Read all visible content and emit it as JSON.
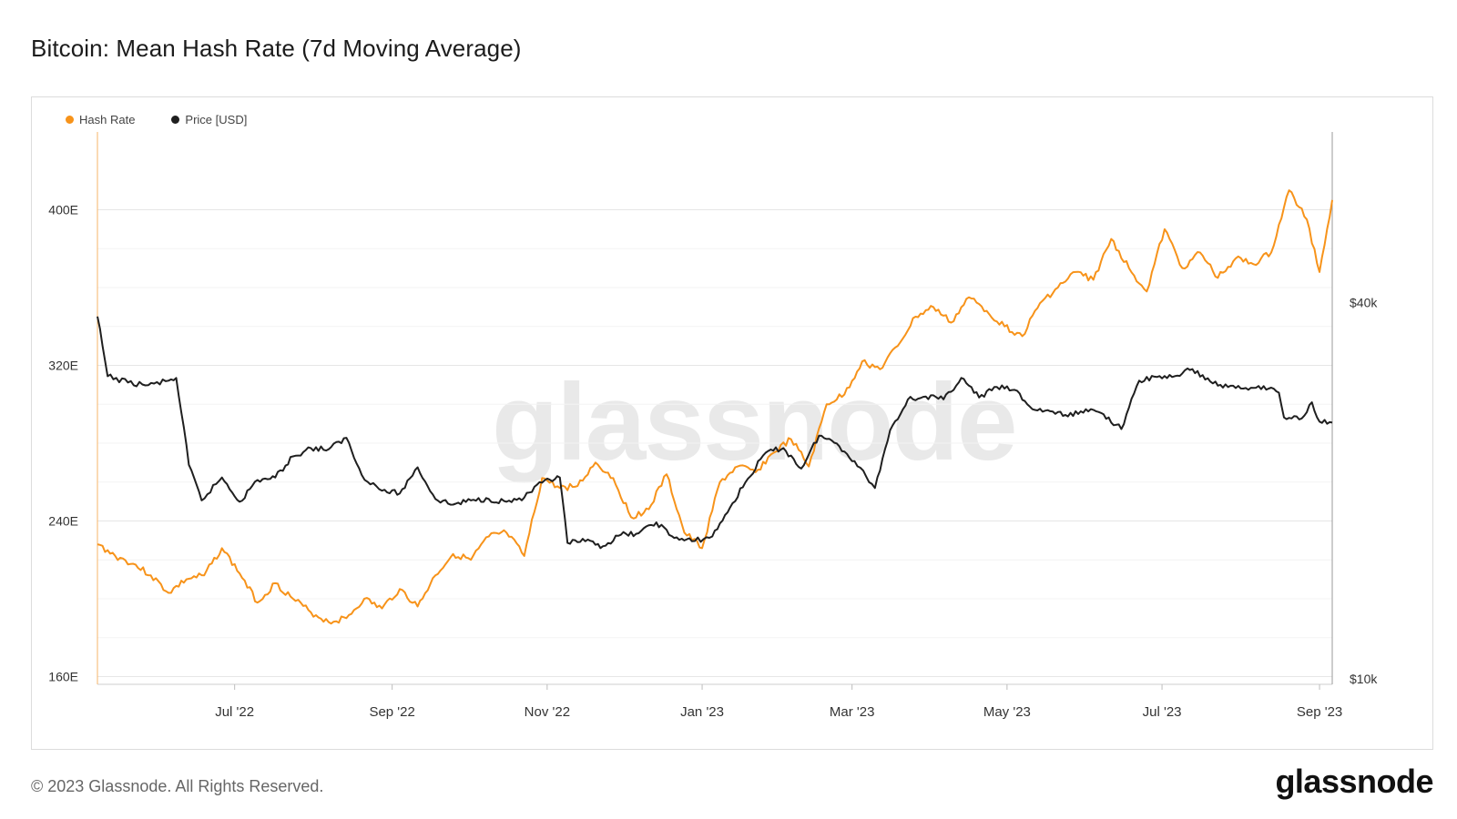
{
  "title": "Bitcoin: Mean Hash Rate (7d Moving Average)",
  "footer": "© 2023 Glassnode. All Rights Reserved.",
  "logo": "glassnode",
  "watermark": "glassnode",
  "colors": {
    "hash": "#f7931a",
    "price": "#1f1f1f",
    "grid": "#ececec"
  },
  "chart_data": {
    "type": "line",
    "title": "Bitcoin: Mean Hash Rate (7d Moving Average)",
    "x_range": [
      "2022-05-08",
      "2023-09-06"
    ],
    "x_ticks": [
      {
        "label": "Jul '22",
        "date": "2022-07-01"
      },
      {
        "label": "Sep '22",
        "date": "2022-09-01"
      },
      {
        "label": "Nov '22",
        "date": "2022-11-01"
      },
      {
        "label": "Jan '23",
        "date": "2023-01-01"
      },
      {
        "label": "Mar '23",
        "date": "2023-03-01"
      },
      {
        "label": "May '23",
        "date": "2023-05-01"
      },
      {
        "label": "Jul '23",
        "date": "2023-07-01"
      },
      {
        "label": "Sep '23",
        "date": "2023-09-01"
      }
    ],
    "y_left": {
      "label": "Hash Rate",
      "unit": "EH/s",
      "ticks": [
        "160E",
        "240E",
        "320E",
        "400E"
      ],
      "tick_values": [
        160,
        240,
        320,
        400
      ],
      "range": [
        156,
        440
      ]
    },
    "y_right": {
      "label": "Price [USD]",
      "scale": "log",
      "ticks": [
        "$10k",
        "$40k"
      ],
      "tick_values": [
        10000,
        40000
      ],
      "range": [
        9800,
        75000
      ]
    },
    "legend": [
      {
        "name": "Hash Rate",
        "color": "#f7931a"
      },
      {
        "name": "Price [USD]",
        "color": "#1f1f1f"
      }
    ],
    "series": [
      {
        "name": "Hash Rate",
        "axis": "left",
        "color": "#f7931a",
        "points": [
          [
            "2022-05-08",
            228
          ],
          [
            "2022-05-15",
            222
          ],
          [
            "2022-05-22",
            218
          ],
          [
            "2022-05-29",
            212
          ],
          [
            "2022-06-05",
            203
          ],
          [
            "2022-06-12",
            210
          ],
          [
            "2022-06-19",
            212
          ],
          [
            "2022-06-26",
            226
          ],
          [
            "2022-07-03",
            213
          ],
          [
            "2022-07-10",
            198
          ],
          [
            "2022-07-17",
            208
          ],
          [
            "2022-07-24",
            200
          ],
          [
            "2022-07-31",
            193
          ],
          [
            "2022-08-07",
            188
          ],
          [
            "2022-08-14",
            190
          ],
          [
            "2022-08-21",
            200
          ],
          [
            "2022-08-28",
            195
          ],
          [
            "2022-09-04",
            205
          ],
          [
            "2022-09-11",
            196
          ],
          [
            "2022-09-18",
            212
          ],
          [
            "2022-09-25",
            223
          ],
          [
            "2022-10-02",
            220
          ],
          [
            "2022-10-09",
            232
          ],
          [
            "2022-10-16",
            234
          ],
          [
            "2022-10-23",
            222
          ],
          [
            "2022-10-30",
            262
          ],
          [
            "2022-11-06",
            257
          ],
          [
            "2022-11-13",
            258
          ],
          [
            "2022-11-20",
            270
          ],
          [
            "2022-11-27",
            262
          ],
          [
            "2022-12-04",
            242
          ],
          [
            "2022-12-11",
            246
          ],
          [
            "2022-12-18",
            264
          ],
          [
            "2022-12-25",
            234
          ],
          [
            "2023-01-01",
            226
          ],
          [
            "2023-01-08",
            260
          ],
          [
            "2023-01-15",
            268
          ],
          [
            "2023-01-22",
            265
          ],
          [
            "2023-01-29",
            275
          ],
          [
            "2023-02-05",
            282
          ],
          [
            "2023-02-12",
            268
          ],
          [
            "2023-02-19",
            300
          ],
          [
            "2023-02-26",
            305
          ],
          [
            "2023-03-05",
            322
          ],
          [
            "2023-03-12",
            318
          ],
          [
            "2023-03-19",
            330
          ],
          [
            "2023-03-26",
            345
          ],
          [
            "2023-04-02",
            350
          ],
          [
            "2023-04-09",
            342
          ],
          [
            "2023-04-16",
            355
          ],
          [
            "2023-04-23",
            348
          ],
          [
            "2023-04-30",
            340
          ],
          [
            "2023-05-07",
            335
          ],
          [
            "2023-05-14",
            352
          ],
          [
            "2023-05-21",
            360
          ],
          [
            "2023-05-28",
            368
          ],
          [
            "2023-06-04",
            364
          ],
          [
            "2023-06-11",
            385
          ],
          [
            "2023-06-18",
            370
          ],
          [
            "2023-06-25",
            358
          ],
          [
            "2023-07-02",
            390
          ],
          [
            "2023-07-09",
            370
          ],
          [
            "2023-07-16",
            378
          ],
          [
            "2023-07-23",
            365
          ],
          [
            "2023-07-30",
            375
          ],
          [
            "2023-08-06",
            372
          ],
          [
            "2023-08-13",
            378
          ],
          [
            "2023-08-20",
            410
          ],
          [
            "2023-08-27",
            395
          ],
          [
            "2023-09-01",
            368
          ],
          [
            "2023-09-06",
            405
          ]
        ]
      },
      {
        "name": "Price [USD]",
        "axis": "right",
        "color": "#1f1f1f",
        "points": [
          [
            "2022-05-08",
            38000
          ],
          [
            "2022-05-12",
            30500
          ],
          [
            "2022-05-20",
            29800
          ],
          [
            "2022-05-28",
            29500
          ],
          [
            "2022-06-05",
            30000
          ],
          [
            "2022-06-08",
            30300
          ],
          [
            "2022-06-13",
            22000
          ],
          [
            "2022-06-18",
            19300
          ],
          [
            "2022-06-26",
            21000
          ],
          [
            "2022-07-03",
            19200
          ],
          [
            "2022-07-10",
            20800
          ],
          [
            "2022-07-17",
            21000
          ],
          [
            "2022-07-24",
            22700
          ],
          [
            "2022-07-31",
            23400
          ],
          [
            "2022-08-07",
            23300
          ],
          [
            "2022-08-14",
            24300
          ],
          [
            "2022-08-20",
            21200
          ],
          [
            "2022-08-28",
            20000
          ],
          [
            "2022-09-04",
            19800
          ],
          [
            "2022-09-11",
            21800
          ],
          [
            "2022-09-18",
            19400
          ],
          [
            "2022-09-25",
            19000
          ],
          [
            "2022-10-02",
            19300
          ],
          [
            "2022-10-09",
            19400
          ],
          [
            "2022-10-16",
            19200
          ],
          [
            "2022-10-23",
            19500
          ],
          [
            "2022-10-30",
            20600
          ],
          [
            "2022-11-06",
            21000
          ],
          [
            "2022-11-09",
            16500
          ],
          [
            "2022-11-16",
            16600
          ],
          [
            "2022-11-23",
            16300
          ],
          [
            "2022-11-30",
            17000
          ],
          [
            "2022-12-07",
            17100
          ],
          [
            "2022-12-14",
            17800
          ],
          [
            "2022-12-21",
            16800
          ],
          [
            "2022-12-28",
            16600
          ],
          [
            "2023-01-05",
            16900
          ],
          [
            "2023-01-12",
            18800
          ],
          [
            "2023-01-19",
            20900
          ],
          [
            "2023-01-26",
            23000
          ],
          [
            "2023-02-02",
            23400
          ],
          [
            "2023-02-09",
            21700
          ],
          [
            "2023-02-16",
            24500
          ],
          [
            "2023-02-23",
            23800
          ],
          [
            "2023-03-02",
            22300
          ],
          [
            "2023-03-10",
            20200
          ],
          [
            "2023-03-16",
            25000
          ],
          [
            "2023-03-23",
            28000
          ],
          [
            "2023-03-30",
            28300
          ],
          [
            "2023-04-06",
            28000
          ],
          [
            "2023-04-13",
            30300
          ],
          [
            "2023-04-20",
            28200
          ],
          [
            "2023-04-27",
            29300
          ],
          [
            "2023-05-04",
            29000
          ],
          [
            "2023-05-11",
            27000
          ],
          [
            "2023-05-18",
            26800
          ],
          [
            "2023-05-25",
            26300
          ],
          [
            "2023-06-01",
            27000
          ],
          [
            "2023-06-08",
            26500
          ],
          [
            "2023-06-15",
            25100
          ],
          [
            "2023-06-22",
            30000
          ],
          [
            "2023-06-29",
            30400
          ],
          [
            "2023-07-06",
            30500
          ],
          [
            "2023-07-13",
            31300
          ],
          [
            "2023-07-20",
            29900
          ],
          [
            "2023-07-27",
            29300
          ],
          [
            "2023-08-03",
            29200
          ],
          [
            "2023-08-10",
            29400
          ],
          [
            "2023-08-16",
            28700
          ],
          [
            "2023-08-18",
            26200
          ],
          [
            "2023-08-25",
            26100
          ],
          [
            "2023-08-29",
            27700
          ],
          [
            "2023-09-01",
            25800
          ],
          [
            "2023-09-06",
            25700
          ]
        ]
      }
    ]
  }
}
